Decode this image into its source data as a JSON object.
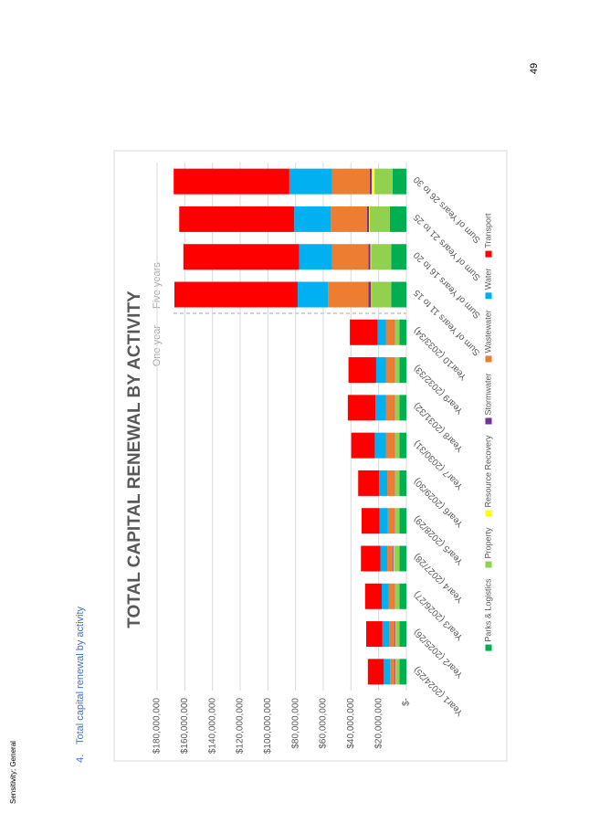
{
  "header": {
    "sensitivity": "Sensitivity: General",
    "section_number": "4.",
    "section_title": "Total capital renewal by activity",
    "page_number": "49"
  },
  "chart_data": {
    "type": "stacked_bar",
    "title": "TOTAL CAPITAL RENEWAL BY ACTIVITY",
    "annotations": [
      "One year",
      "Five years"
    ],
    "categories": [
      "Year1 (2024/25)",
      "Year2 (2025/26)",
      "Year3 (2026/27)",
      "Year4 (2027/28)",
      "Year5 (2028/29)",
      "Year6 (2029/30)",
      "Year7 (2030/31)",
      "Year8 (2031/32)",
      "Year9 (2032/33)",
      "Year10 (2033/34)",
      "Sum of Years 11 to 15",
      "Sum of Years 16 to 20",
      "Sum of Years 21 to 25",
      "Sum of Years 26 to 30"
    ],
    "series": [
      {
        "name": "Parks & Logistics",
        "color": "#00b050",
        "values": [
          5000000,
          5000000,
          5000000,
          5000000,
          5000000,
          5000000,
          5000000,
          5000000,
          5000000,
          5000000,
          11000000,
          11000000,
          12000000,
          10000000
        ]
      },
      {
        "name": "Property",
        "color": "#92d050",
        "values": [
          2500000,
          2500000,
          3000000,
          4000000,
          3000000,
          3000000,
          3000000,
          3000000,
          3000000,
          3000000,
          14000000,
          14500000,
          14500000,
          13000000
        ]
      },
      {
        "name": "Resource Recovery",
        "color": "#ffff00",
        "values": [
          300000,
          300000,
          300000,
          300000,
          300000,
          300000,
          300000,
          300000,
          300000,
          300000,
          500000,
          500000,
          500000,
          2000000
        ]
      },
      {
        "name": "Stormwater",
        "color": "#7030a0",
        "values": [
          500000,
          500000,
          500000,
          500000,
          500000,
          500000,
          500000,
          500000,
          500000,
          500000,
          2000000,
          1500000,
          1500000,
          1500000
        ]
      },
      {
        "name": "Wastewater",
        "color": "#ed7d31",
        "values": [
          3500000,
          4000000,
          4000000,
          4000000,
          4500000,
          5000000,
          6000000,
          6000000,
          6000000,
          6000000,
          29000000,
          26000000,
          26000000,
          27000000
        ]
      },
      {
        "name": "Water",
        "color": "#00b0f0",
        "values": [
          4500000,
          5000000,
          5000000,
          5000000,
          6000000,
          6000000,
          8000000,
          7500000,
          7000000,
          6000000,
          22000000,
          24000000,
          26500000,
          31000000
        ]
      },
      {
        "name": "Transport",
        "color": "#ff0000",
        "values": [
          11500000,
          11700000,
          12000000,
          14000000,
          13000000,
          15000000,
          17000000,
          20000000,
          20000000,
          20000000,
          89000000,
          83500000,
          83000000,
          83500000
        ]
      }
    ],
    "ylim": [
      0,
      180000000
    ],
    "yticks": [
      {
        "value": 0,
        "label": "$-"
      },
      {
        "value": 20000000,
        "label": "$20,000,000"
      },
      {
        "value": 40000000,
        "label": "$40,000,000"
      },
      {
        "value": 60000000,
        "label": "$60,000,000"
      },
      {
        "value": 80000000,
        "label": "$80,000,000"
      },
      {
        "value": 100000000,
        "label": "$100,000,000"
      },
      {
        "value": 120000000,
        "label": "$120,000,000"
      },
      {
        "value": 140000000,
        "label": "$140,000,000"
      },
      {
        "value": 160000000,
        "label": "$160,000,000"
      },
      {
        "value": 180000000,
        "label": "$180,000,000"
      }
    ],
    "grid": true,
    "legend": "bottom"
  }
}
